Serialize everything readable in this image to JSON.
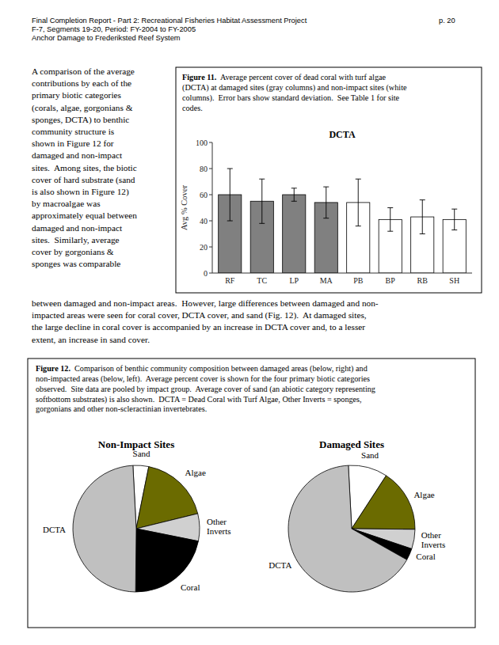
{
  "page_text": {
    "header": [
      "Final Completion Report - Part 2: Recreational Fisheries Habitat Assessment Project",
      "F-7, Segments 19-20, Period: FY-2004 to FY-2005",
      "Anchor Damage to Frederiksted Reef System"
    ],
    "page_number": "p. 20",
    "paragraphs": [
      "A comparison of the average\ncontributions by each of the\nprimary biotic categories\n(corals, algae, gorgonians &\nsponges, DCTA) to benthic\ncommunity structure is\nshown in Figure 12 for\ndamaged and non-impact\nsites.  Among sites, the biotic\ncover of hard substrate (sand\nis also shown in Figure 12)\nby macroalgae was\napproximately equal between\ndamaged and non-impact\nsites.  Similarly, average\ncover by gorgonians &\nsponges was comparable",
      "between damaged and non-impact areas.  However, large differences between damaged and non-\nimpacted areas were seen for coral cover, DCTA cover, and sand (Fig. 12).  At damaged sites,\nthe large decline in coral cover is accompanied by an increase in DCTA cover and, to a lesser\nextent, an increase in sand cover."
    ]
  },
  "chart_data": [
    {
      "type": "bar",
      "title": "DCTA",
      "caption_label": "Figure 11.",
      "caption": "  Average percent cover of dead coral with turf algae\n(DCTA) at damaged sites (gray columns) and non-impact sites (white\ncolumns).  Error bars show standard deviation.  See Table 1 for site\ncodes.",
      "ylabel": "Avg % Cover",
      "categories": [
        "RF",
        "TC",
        "LP",
        "MA",
        "PB",
        "BP",
        "RB",
        "SH"
      ],
      "values": [
        60,
        55,
        60,
        54,
        54,
        41,
        43,
        41
      ],
      "errors": [
        20,
        17,
        5,
        12,
        18,
        9,
        13,
        8
      ],
      "colors": [
        "#808080",
        "#808080",
        "#808080",
        "#808080",
        "#ffffff",
        "#ffffff",
        "#ffffff",
        "#ffffff"
      ],
      "ylim": [
        0,
        100
      ],
      "yticks": [
        0,
        20,
        40,
        60,
        80,
        100
      ],
      "grid": false
    },
    {
      "type": "pie",
      "title": "Non-Impact Sites",
      "caption_label": "Figure 12.",
      "caption": "  Comparison of benthic community composition between damaged areas (below, right) and\nnon-impacted areas (below, left).  Average percent cover is shown for the four primary biotic categories\nobserved.  Site data are pooled by impact group.  Average cover of sand (an abiotic category representing\nsoftbottom substrates) is also shown.  DCTA = Dead Coral with Turf Algae, Other Inverts = sponges,\ngorgonians and other non-scleractinian invertebrates.",
      "categories": [
        "Sand",
        "Algae",
        "Other\nInverts",
        "Coral",
        "DCTA"
      ],
      "values": [
        4,
        18,
        7,
        22,
        49
      ],
      "colors": [
        "#ffffff",
        "#6b6b00",
        "#d0d0d0",
        "#000000",
        "#c0c0c0"
      ]
    },
    {
      "type": "pie",
      "title": "Damaged Sites",
      "categories": [
        "Sand",
        "Algae",
        "Other\nInverts",
        "Coral",
        "DCTA"
      ],
      "values": [
        10,
        16,
        5,
        3,
        66
      ],
      "colors": [
        "#ffffff",
        "#6b6b00",
        "#d0d0d0",
        "#000000",
        "#c0c0c0"
      ]
    }
  ]
}
